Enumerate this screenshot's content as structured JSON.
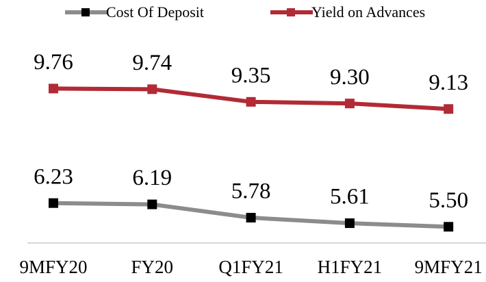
{
  "chart_data": {
    "type": "line",
    "categories": [
      "9MFY20",
      "FY20",
      "Q1FY21",
      "H1FY21",
      "9MFY21"
    ],
    "series": [
      {
        "name": "Cost Of Deposit",
        "color": "#8c8c8c",
        "marker_color": "#000000",
        "values": [
          6.23,
          6.19,
          5.78,
          5.61,
          5.5
        ],
        "value_labels": [
          "6.23",
          "6.19",
          "5.78",
          "5.61",
          "5.50"
        ]
      },
      {
        "name": "Yield on Advances",
        "color": "#b22a35",
        "marker_color": "#b22a35",
        "values": [
          9.76,
          9.74,
          9.35,
          9.3,
          9.13
        ],
        "value_labels": [
          "9.76",
          "9.74",
          "9.35",
          "9.30",
          "9.13"
        ]
      }
    ],
    "ylim": [
      5,
      10
    ]
  }
}
